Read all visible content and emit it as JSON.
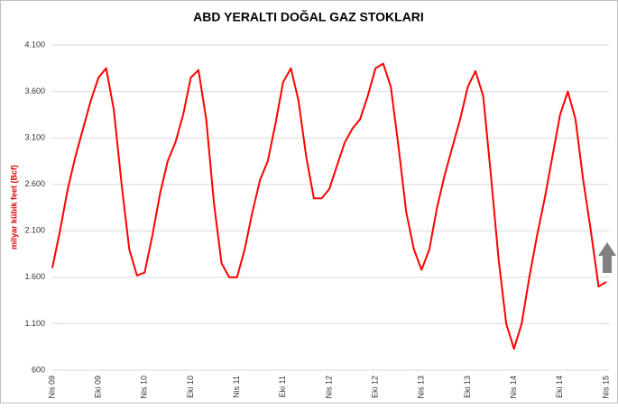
{
  "chart_data": {
    "type": "line",
    "title": "ABD YERALTI DOĞAL GAZ STOKLARI",
    "y_label": "milyar kübik feet (Bcf)",
    "categories": [
      "Nis 09",
      null,
      null,
      null,
      null,
      null,
      "Eki 09",
      null,
      null,
      null,
      null,
      null,
      "Nis 10",
      null,
      null,
      null,
      null,
      null,
      "Eki 10",
      null,
      null,
      null,
      null,
      null,
      "Nis 11",
      null,
      null,
      null,
      null,
      null,
      "Eki 11",
      null,
      null,
      null,
      null,
      null,
      "Nis 12",
      null,
      null,
      null,
      null,
      null,
      "Eki 12",
      null,
      null,
      null,
      null,
      null,
      "Nis 13",
      null,
      null,
      null,
      null,
      null,
      "Eki 13",
      null,
      null,
      null,
      null,
      null,
      "Nis 14",
      null,
      null,
      null,
      null,
      null,
      "Eki 14",
      null,
      null,
      null,
      null,
      null,
      "Nis 15"
    ],
    "series": [
      {
        "color": "#ff0000",
        "values": [
          1700,
          2100,
          2550,
          2900,
          3200,
          3500,
          3750,
          3850,
          3400,
          2600,
          1900,
          1620,
          1650,
          2050,
          2500,
          2850,
          3050,
          3350,
          3750,
          3830,
          3300,
          2400,
          1750,
          1600,
          1600,
          1900,
          2300,
          2650,
          2850,
          3250,
          3700,
          3850,
          3500,
          2900,
          2450,
          2450,
          2550,
          2800,
          3050,
          3200,
          3300,
          3550,
          3850,
          3900,
          3650,
          3000,
          2300,
          1900,
          1680,
          1900,
          2350,
          2700,
          3000,
          3300,
          3650,
          3820,
          3550,
          2700,
          1800,
          1100,
          830,
          1100,
          1600,
          2050,
          2450,
          2900,
          3350,
          3600,
          3300,
          2650,
          2100,
          1500,
          1550
        ]
      }
    ],
    "ylim": [
      600,
      4100
    ],
    "yticks": [
      {
        "value": 600,
        "label": "600"
      },
      {
        "value": 1100,
        "label": "1.100"
      },
      {
        "value": 1600,
        "label": "1.600"
      },
      {
        "value": 2100,
        "label": "2.100"
      },
      {
        "value": 2600,
        "label": "2.600"
      },
      {
        "value": 3100,
        "label": "3.100"
      },
      {
        "value": 3600,
        "label": "3.600"
      },
      {
        "value": 4100,
        "label": "4.100"
      }
    ],
    "grid": true
  }
}
